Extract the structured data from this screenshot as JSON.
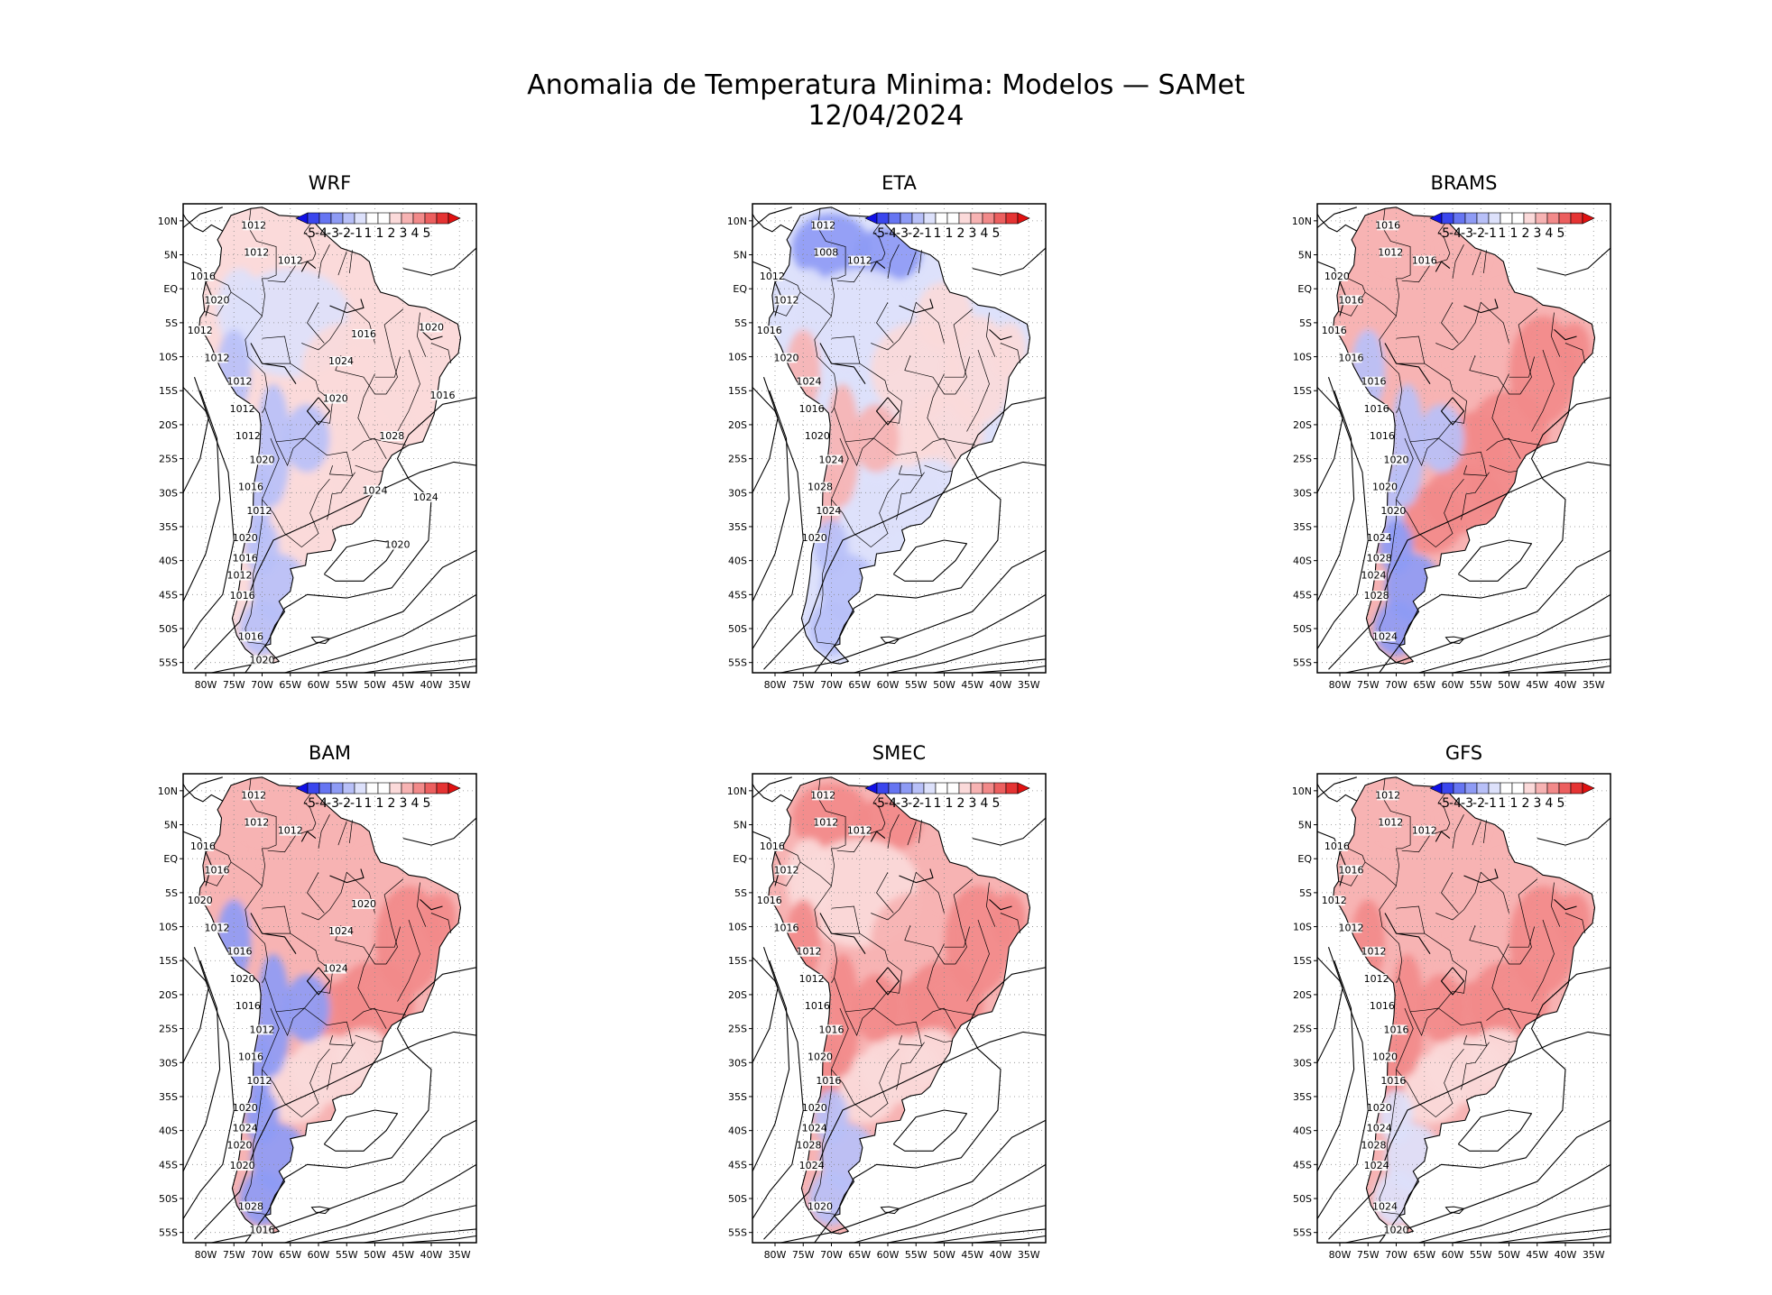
{
  "figure": {
    "title": "Anomalia de Temperatura Minima: Modelos — SAMet",
    "date": "12/04/2024"
  },
  "axes": {
    "lon_ticks": [
      "80W",
      "75W",
      "70W",
      "65W",
      "60W",
      "55W",
      "50W",
      "45W",
      "40W",
      "35W"
    ],
    "lat_ticks": [
      "10N",
      "5N",
      "EQ",
      "5S",
      "10S",
      "15S",
      "20S",
      "25S",
      "30S",
      "35S",
      "40S",
      "45S",
      "50S",
      "55S"
    ]
  },
  "colorbar": {
    "labels": [
      "-5",
      "-4",
      "-3",
      "-2",
      "-1",
      "1",
      "1",
      "2",
      "3",
      "4",
      "5"
    ],
    "colors": [
      "#1010e6",
      "#3a46ee",
      "#6675f2",
      "#8e9bf5",
      "#b8c0f8",
      "#dde1fb",
      "#ffffff",
      "#ffffff",
      "#fbdada",
      "#f7b3b3",
      "#f28a8a",
      "#ec5f5f",
      "#e53333",
      "#e01111"
    ]
  },
  "chart_data": [
    {
      "type": "map",
      "model": "WRF",
      "isobar_labels": [
        "1012",
        "1012",
        "1012",
        "1016",
        "1020",
        "1012",
        "1012",
        "1012",
        "1012",
        "1012",
        "1020",
        "1016",
        "1012",
        "1020",
        "1016",
        "1012",
        "1016",
        "1016",
        "1020",
        "1020",
        "1024",
        "1016",
        "1020",
        "1016",
        "1028",
        "1024",
        "1024",
        "1020"
      ],
      "anomaly": {
        "north": 0.2,
        "amazon": -0.1,
        "central": 0.6,
        "east": 0.9,
        "south": 0.3,
        "andes": -1.4,
        "patagonia": -2.0
      }
    },
    {
      "type": "map",
      "model": "ETA",
      "isobar_labels": [
        "1012",
        "1008",
        "1012",
        "1012",
        "1012",
        "1016",
        "1020",
        "1024",
        "1016",
        "1020",
        "1024",
        "1028",
        "1024",
        "1020"
      ],
      "anomaly": {
        "north": -2.2,
        "amazon": -0.6,
        "central": 0.3,
        "east": 0.5,
        "south": -0.7,
        "andes": 1.6,
        "patagonia": -1.6
      }
    },
    {
      "type": "map",
      "model": "BRAMS",
      "isobar_labels": [
        "1016",
        "1012",
        "1016",
        "1020",
        "1016",
        "1016",
        "1016",
        "1016",
        "1016",
        "1016",
        "1020",
        "1020",
        "1020",
        "1024",
        "1028",
        "1024",
        "1028",
        "1024"
      ],
      "anomaly": {
        "north": 1.3,
        "amazon": 1.5,
        "central": 1.3,
        "east": 2.2,
        "south": 2.0,
        "andes": -2.0,
        "patagonia": -3.0
      }
    },
    {
      "type": "map",
      "model": "BAM",
      "isobar_labels": [
        "1012",
        "1012",
        "1012",
        "1016",
        "1016",
        "1020",
        "1012",
        "1016",
        "1020",
        "1016",
        "1012",
        "1016",
        "1012",
        "1020",
        "1024",
        "1020",
        "1020",
        "1028",
        "1016",
        "1024",
        "1024",
        "1020"
      ],
      "anomaly": {
        "north": 1.0,
        "amazon": 1.2,
        "central": 1.8,
        "east": 2.6,
        "south": 0.8,
        "andes": -3.0,
        "patagonia": -3.0
      }
    },
    {
      "type": "map",
      "model": "SMEC",
      "isobar_labels": [
        "1012",
        "1012",
        "1012",
        "1016",
        "1012",
        "1016",
        "1016",
        "1012",
        "1012",
        "1016",
        "1016",
        "1020",
        "1016",
        "1020",
        "1024",
        "1028",
        "1024",
        "1020"
      ],
      "anomaly": {
        "north": 2.0,
        "amazon": 0.8,
        "central": 1.4,
        "east": 2.4,
        "south": 0.4,
        "andes": 2.6,
        "patagonia": -1.5
      }
    },
    {
      "type": "map",
      "model": "GFS",
      "isobar_labels": [
        "1012",
        "1012",
        "1012",
        "1016",
        "1016",
        "1012",
        "1012",
        "1012",
        "1012",
        "1016",
        "1016",
        "1020",
        "1016",
        "1020",
        "1024",
        "1028",
        "1024",
        "1024",
        "1020"
      ],
      "anomaly": {
        "north": 1.6,
        "amazon": 1.0,
        "central": 1.2,
        "east": 2.2,
        "south": 0.9,
        "andes": 2.3,
        "patagonia": -0.8
      }
    }
  ]
}
